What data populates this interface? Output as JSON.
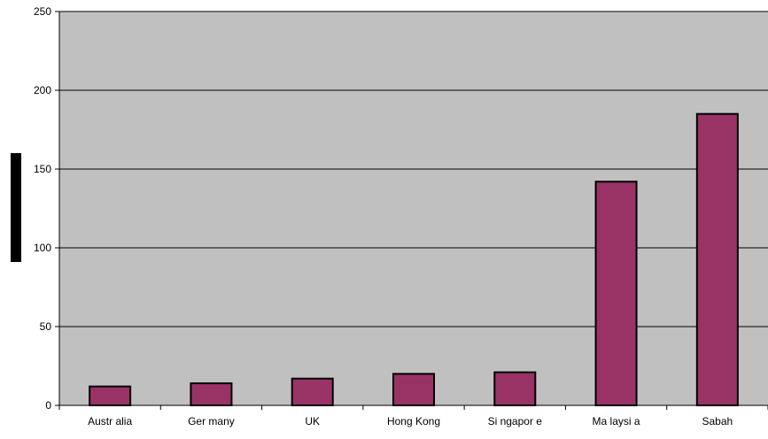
{
  "chart_data": {
    "type": "bar",
    "title": "",
    "xlabel": "",
    "ylabel": "",
    "categories": [
      "Austr alia",
      "Ger many",
      "UK",
      "Hong Kong",
      "Si ngapor e",
      "Ma laysi a",
      "Sabah"
    ],
    "values": [
      12,
      14,
      17,
      20,
      21,
      142,
      185
    ],
    "ylim": [
      0,
      250
    ],
    "yticks": [
      0,
      50,
      100,
      150,
      200,
      250
    ],
    "grid": true,
    "legend": "none",
    "colors": {
      "plot_background": "#c0c0c0",
      "bar_fill": "#993366",
      "bar_stroke": "#000000",
      "gridline": "#000000",
      "ylabel_block": "#000000"
    }
  }
}
